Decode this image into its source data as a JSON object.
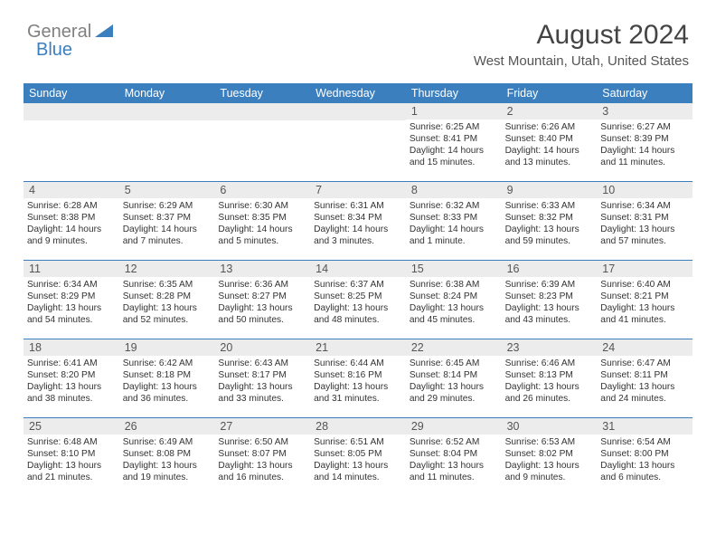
{
  "brand": {
    "part1": "General",
    "part2": "Blue"
  },
  "title": "August 2024",
  "location": "West Mountain, Utah, United States",
  "colors": {
    "header_bg": "#3b7fbf",
    "daynum_bg": "#ececec",
    "rule": "#3b7fbf",
    "text": "#333333"
  },
  "day_names": [
    "Sunday",
    "Monday",
    "Tuesday",
    "Wednesday",
    "Thursday",
    "Friday",
    "Saturday"
  ],
  "weeks": [
    [
      {
        "blank": true
      },
      {
        "blank": true
      },
      {
        "blank": true
      },
      {
        "blank": true
      },
      {
        "n": "1",
        "sr": "Sunrise: 6:25 AM",
        "ss": "Sunset: 8:41 PM",
        "d1": "Daylight: 14 hours",
        "d2": "and 15 minutes."
      },
      {
        "n": "2",
        "sr": "Sunrise: 6:26 AM",
        "ss": "Sunset: 8:40 PM",
        "d1": "Daylight: 14 hours",
        "d2": "and 13 minutes."
      },
      {
        "n": "3",
        "sr": "Sunrise: 6:27 AM",
        "ss": "Sunset: 8:39 PM",
        "d1": "Daylight: 14 hours",
        "d2": "and 11 minutes."
      }
    ],
    [
      {
        "n": "4",
        "sr": "Sunrise: 6:28 AM",
        "ss": "Sunset: 8:38 PM",
        "d1": "Daylight: 14 hours",
        "d2": "and 9 minutes."
      },
      {
        "n": "5",
        "sr": "Sunrise: 6:29 AM",
        "ss": "Sunset: 8:37 PM",
        "d1": "Daylight: 14 hours",
        "d2": "and 7 minutes."
      },
      {
        "n": "6",
        "sr": "Sunrise: 6:30 AM",
        "ss": "Sunset: 8:35 PM",
        "d1": "Daylight: 14 hours",
        "d2": "and 5 minutes."
      },
      {
        "n": "7",
        "sr": "Sunrise: 6:31 AM",
        "ss": "Sunset: 8:34 PM",
        "d1": "Daylight: 14 hours",
        "d2": "and 3 minutes."
      },
      {
        "n": "8",
        "sr": "Sunrise: 6:32 AM",
        "ss": "Sunset: 8:33 PM",
        "d1": "Daylight: 14 hours",
        "d2": "and 1 minute."
      },
      {
        "n": "9",
        "sr": "Sunrise: 6:33 AM",
        "ss": "Sunset: 8:32 PM",
        "d1": "Daylight: 13 hours",
        "d2": "and 59 minutes."
      },
      {
        "n": "10",
        "sr": "Sunrise: 6:34 AM",
        "ss": "Sunset: 8:31 PM",
        "d1": "Daylight: 13 hours",
        "d2": "and 57 minutes."
      }
    ],
    [
      {
        "n": "11",
        "sr": "Sunrise: 6:34 AM",
        "ss": "Sunset: 8:29 PM",
        "d1": "Daylight: 13 hours",
        "d2": "and 54 minutes."
      },
      {
        "n": "12",
        "sr": "Sunrise: 6:35 AM",
        "ss": "Sunset: 8:28 PM",
        "d1": "Daylight: 13 hours",
        "d2": "and 52 minutes."
      },
      {
        "n": "13",
        "sr": "Sunrise: 6:36 AM",
        "ss": "Sunset: 8:27 PM",
        "d1": "Daylight: 13 hours",
        "d2": "and 50 minutes."
      },
      {
        "n": "14",
        "sr": "Sunrise: 6:37 AM",
        "ss": "Sunset: 8:25 PM",
        "d1": "Daylight: 13 hours",
        "d2": "and 48 minutes."
      },
      {
        "n": "15",
        "sr": "Sunrise: 6:38 AM",
        "ss": "Sunset: 8:24 PM",
        "d1": "Daylight: 13 hours",
        "d2": "and 45 minutes."
      },
      {
        "n": "16",
        "sr": "Sunrise: 6:39 AM",
        "ss": "Sunset: 8:23 PM",
        "d1": "Daylight: 13 hours",
        "d2": "and 43 minutes."
      },
      {
        "n": "17",
        "sr": "Sunrise: 6:40 AM",
        "ss": "Sunset: 8:21 PM",
        "d1": "Daylight: 13 hours",
        "d2": "and 41 minutes."
      }
    ],
    [
      {
        "n": "18",
        "sr": "Sunrise: 6:41 AM",
        "ss": "Sunset: 8:20 PM",
        "d1": "Daylight: 13 hours",
        "d2": "and 38 minutes."
      },
      {
        "n": "19",
        "sr": "Sunrise: 6:42 AM",
        "ss": "Sunset: 8:18 PM",
        "d1": "Daylight: 13 hours",
        "d2": "and 36 minutes."
      },
      {
        "n": "20",
        "sr": "Sunrise: 6:43 AM",
        "ss": "Sunset: 8:17 PM",
        "d1": "Daylight: 13 hours",
        "d2": "and 33 minutes."
      },
      {
        "n": "21",
        "sr": "Sunrise: 6:44 AM",
        "ss": "Sunset: 8:16 PM",
        "d1": "Daylight: 13 hours",
        "d2": "and 31 minutes."
      },
      {
        "n": "22",
        "sr": "Sunrise: 6:45 AM",
        "ss": "Sunset: 8:14 PM",
        "d1": "Daylight: 13 hours",
        "d2": "and 29 minutes."
      },
      {
        "n": "23",
        "sr": "Sunrise: 6:46 AM",
        "ss": "Sunset: 8:13 PM",
        "d1": "Daylight: 13 hours",
        "d2": "and 26 minutes."
      },
      {
        "n": "24",
        "sr": "Sunrise: 6:47 AM",
        "ss": "Sunset: 8:11 PM",
        "d1": "Daylight: 13 hours",
        "d2": "and 24 minutes."
      }
    ],
    [
      {
        "n": "25",
        "sr": "Sunrise: 6:48 AM",
        "ss": "Sunset: 8:10 PM",
        "d1": "Daylight: 13 hours",
        "d2": "and 21 minutes."
      },
      {
        "n": "26",
        "sr": "Sunrise: 6:49 AM",
        "ss": "Sunset: 8:08 PM",
        "d1": "Daylight: 13 hours",
        "d2": "and 19 minutes."
      },
      {
        "n": "27",
        "sr": "Sunrise: 6:50 AM",
        "ss": "Sunset: 8:07 PM",
        "d1": "Daylight: 13 hours",
        "d2": "and 16 minutes."
      },
      {
        "n": "28",
        "sr": "Sunrise: 6:51 AM",
        "ss": "Sunset: 8:05 PM",
        "d1": "Daylight: 13 hours",
        "d2": "and 14 minutes."
      },
      {
        "n": "29",
        "sr": "Sunrise: 6:52 AM",
        "ss": "Sunset: 8:04 PM",
        "d1": "Daylight: 13 hours",
        "d2": "and 11 minutes."
      },
      {
        "n": "30",
        "sr": "Sunrise: 6:53 AM",
        "ss": "Sunset: 8:02 PM",
        "d1": "Daylight: 13 hours",
        "d2": "and 9 minutes."
      },
      {
        "n": "31",
        "sr": "Sunrise: 6:54 AM",
        "ss": "Sunset: 8:00 PM",
        "d1": "Daylight: 13 hours",
        "d2": "and 6 minutes."
      }
    ]
  ]
}
